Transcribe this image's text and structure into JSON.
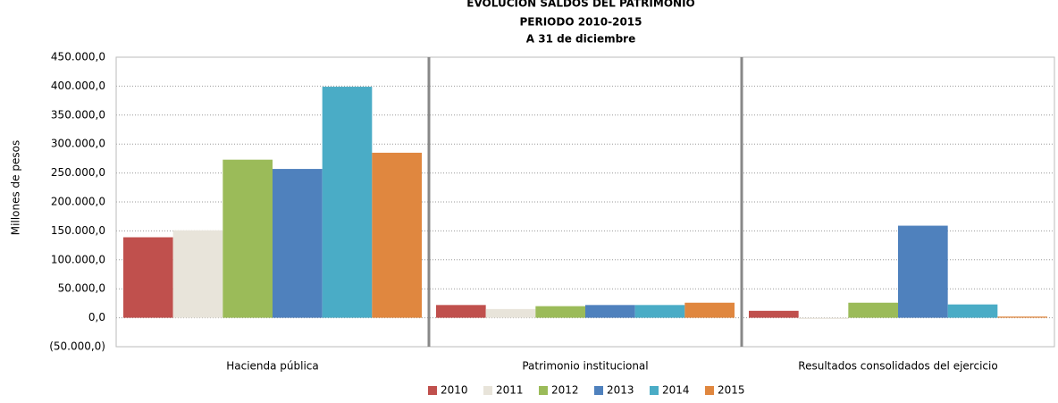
{
  "chart_data": {
    "type": "bar",
    "title": "EVOLUCIÓN SALDOS DEL PATRIMONIO",
    "subtitle": [
      "PERIODO 2010-2015",
      "A 31 de diciembre"
    ],
    "y_label": "Millones de pesos",
    "categories": [
      "Hacienda pública",
      "Patrimonio institucional",
      "Resultados consolidados del ejercicio"
    ],
    "series": [
      {
        "name": "2010",
        "color": "#c0504d",
        "values": [
          139000,
          22000,
          12000
        ]
      },
      {
        "name": "2011",
        "color": "#e8e4da",
        "values": [
          151000,
          15000,
          -2000
        ]
      },
      {
        "name": "2012",
        "color": "#9bbb59",
        "values": [
          273000,
          20000,
          26000
        ]
      },
      {
        "name": "2013",
        "color": "#4f81bd",
        "values": [
          257000,
          22000,
          159000
        ]
      },
      {
        "name": "2014",
        "color": "#4aacc6",
        "values": [
          399000,
          22000,
          23000
        ]
      },
      {
        "name": "2015",
        "color": "#e0873f",
        "values": [
          285000,
          26000,
          2000
        ]
      }
    ],
    "ylim": [
      -50000,
      450000
    ],
    "yticks": [
      {
        "value": -50000,
        "label": "(50.000,0)"
      },
      {
        "value": 0,
        "label": "0,0"
      },
      {
        "value": 50000,
        "label": "50.000,0"
      },
      {
        "value": 100000,
        "label": "100.000,0"
      },
      {
        "value": 150000,
        "label": "150.000,0"
      },
      {
        "value": 200000,
        "label": "200.000,0"
      },
      {
        "value": 250000,
        "label": "250.000,0"
      },
      {
        "value": 300000,
        "label": "300.000,0"
      },
      {
        "value": 350000,
        "label": "350.000,0"
      },
      {
        "value": 400000,
        "label": "400.000,0"
      },
      {
        "value": 450000,
        "label": "450.000,0"
      }
    ],
    "grid": true,
    "legend": "bottom"
  }
}
